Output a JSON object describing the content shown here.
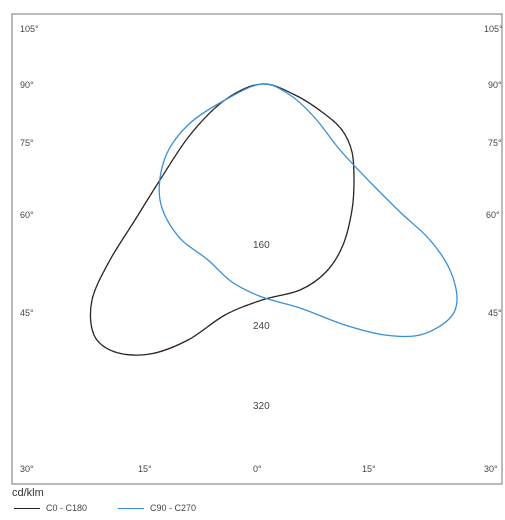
{
  "chart_data": {
    "type": "polar-line",
    "unit_label": "cd/klm",
    "left_angle_labels": [
      "105°",
      "90°",
      "75°",
      "60°",
      "45°",
      "30°"
    ],
    "right_angle_labels": [
      "105°",
      "90°",
      "75°",
      "60°",
      "45°",
      "30°"
    ],
    "bottom_angle_labels": [
      "15°",
      "0°",
      "15°"
    ],
    "radial_labels": [
      "160",
      "240",
      "320"
    ],
    "series": [
      {
        "name": "C0 - C180",
        "color": "#222222",
        "accent": "#cc3333",
        "outline": [
          [
            262,
            84
          ],
          [
            295,
            95
          ],
          [
            322,
            112
          ],
          [
            342,
            130
          ],
          [
            352,
            152
          ],
          [
            354,
            180
          ],
          [
            352,
            210
          ],
          [
            343,
            245
          ],
          [
            326,
            272
          ],
          [
            300,
            290
          ],
          [
            262,
            300
          ],
          [
            225,
            315
          ],
          [
            188,
            340
          ],
          [
            150,
            354
          ],
          [
            115,
            352
          ],
          [
            94,
            335
          ],
          [
            92,
            300
          ],
          [
            110,
            260
          ],
          [
            135,
            220
          ],
          [
            160,
            180
          ],
          [
            190,
            135
          ],
          [
            225,
            100
          ],
          [
            262,
            84
          ]
        ]
      },
      {
        "name": "C90 - C270",
        "color": "#3a8fd6",
        "outline": [
          [
            262,
            84
          ],
          [
            225,
            100
          ],
          [
            188,
            125
          ],
          [
            165,
            158
          ],
          [
            160,
            200
          ],
          [
            178,
            236
          ],
          [
            208,
            260
          ],
          [
            232,
            282
          ],
          [
            262,
            297
          ],
          [
            300,
            308
          ],
          [
            345,
            325
          ],
          [
            385,
            335
          ],
          [
            420,
            335
          ],
          [
            448,
            320
          ],
          [
            457,
            300
          ],
          [
            450,
            270
          ],
          [
            430,
            240
          ],
          [
            400,
            212
          ],
          [
            370,
            182
          ],
          [
            340,
            150
          ],
          [
            315,
            118
          ],
          [
            290,
            95
          ],
          [
            262,
            84
          ]
        ]
      }
    ]
  }
}
